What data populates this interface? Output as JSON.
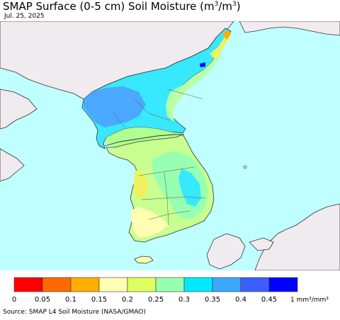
{
  "title": {
    "main": "SMAP Surface (0-5 cm) Soil Moisture (m",
    "sup1": "3",
    "mid": "/m",
    "sup2": "3",
    "end": ")"
  },
  "date": "Jul. 25, 2025",
  "source": "Source: SMAP L4 Soil Moisture (NASA/GMAO)",
  "colors": {
    "sea": "#c0ffff",
    "land_outside": "#efebee",
    "border": "#333333"
  },
  "legend": {
    "colors": [
      "#ff0000",
      "#ff6a00",
      "#ffae00",
      "#ffffb3",
      "#dfff5f",
      "#98ffb0",
      "#00eaff",
      "#3ba7ff",
      "#3b5fff",
      "#0000ff"
    ],
    "ticks": [
      "0",
      "0.05",
      "0.1",
      "0.15",
      "0.2",
      "0.25",
      "0.3",
      "0.35",
      "0.4",
      "0.45"
    ],
    "unit": "1 mm³/mm³"
  }
}
